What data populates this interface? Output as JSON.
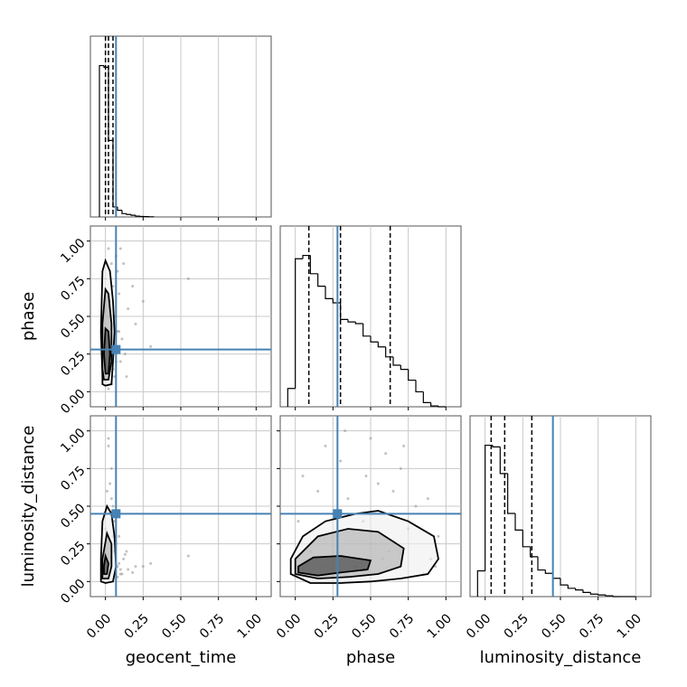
{
  "chart_data": {
    "type": "corner",
    "parameters": [
      "geocent_time",
      "phase",
      "luminosity_distance"
    ],
    "truths": [
      0.07,
      0.28,
      0.45
    ],
    "truth_color": "#4682b4",
    "quantiles": [
      [
        0.0,
        0.02,
        0.05
      ],
      [
        0.09,
        0.3,
        0.63
      ],
      [
        0.04,
        0.13,
        0.31
      ]
    ],
    "lim": [
      -0.1,
      1.1
    ],
    "ticks": [
      {
        "value": 0,
        "label": "0.00"
      },
      {
        "value": 0.25,
        "label": "0.25"
      },
      {
        "value": 0.5,
        "label": "0.50"
      },
      {
        "value": 0.75,
        "label": "0.75"
      },
      {
        "value": 1,
        "label": "1.00"
      }
    ],
    "grid": true,
    "histograms": [
      {
        "bins": [
          -0.04,
          -0.01,
          0.02,
          0.05,
          0.08,
          0.11,
          0.14,
          0.17,
          0.2,
          0.23,
          0.26,
          0.29,
          0.32
        ],
        "counts": [
          0.91,
          0.9,
          0.46,
          0.06,
          0.04,
          0.02,
          0.015,
          0.01,
          0.005,
          0.003,
          0.002,
          0.001
        ],
        "ylim": [
          0,
          1
        ]
      },
      {
        "bins": [
          -0.05,
          0,
          0.05,
          0.1,
          0.15,
          0.2,
          0.25,
          0.3,
          0.35,
          0.4,
          0.45,
          0.5,
          0.55,
          0.6,
          0.65,
          0.7,
          0.75,
          0.8,
          0.85,
          0.9,
          0.95,
          1
        ],
        "counts": [
          0.11,
          0.89,
          0.91,
          0.8,
          0.725,
          0.65,
          0.625,
          0.525,
          0.51,
          0.5,
          0.425,
          0.39,
          0.36,
          0.3,
          0.25,
          0.225,
          0.16,
          0.09,
          0.025,
          0.005,
          0
        ],
        "ylim": [
          0,
          1
        ]
      },
      {
        "bins": [
          -0.05,
          0,
          0.05,
          0.1,
          0.15,
          0.2,
          0.25,
          0.3,
          0.35,
          0.4,
          0.45,
          0.5,
          0.55,
          0.6,
          0.65,
          0.7,
          0.75,
          0.8,
          0.85,
          0.9,
          0.95,
          1
        ],
        "counts": [
          0.155,
          0.91,
          0.9,
          0.74,
          0.5,
          0.4,
          0.3,
          0.24,
          0.16,
          0.14,
          0.11,
          0.07,
          0.05,
          0.04,
          0.025,
          0.015,
          0.01,
          0.005,
          0,
          0,
          0
        ],
        "ylim": [
          0,
          1
        ]
      }
    ],
    "pairs": [
      {
        "x": 0,
        "y": 1,
        "points_x": [
          0.02,
          0.05,
          0.08,
          0.1,
          0.01,
          0.12,
          0.06,
          0.15,
          0.03,
          0.09,
          0.2,
          0.04,
          0.07,
          0.11,
          0.0,
          0.13,
          0.25,
          0.05,
          0.08,
          0.02,
          0.3,
          0.06,
          0.1,
          0.14,
          0.03,
          0.55,
          0.09,
          0.07,
          0.18,
          0.04
        ],
        "points_y": [
          0.95,
          0.7,
          0.4,
          0.2,
          0.5,
          0.85,
          0.1,
          0.55,
          0.3,
          0.65,
          0.45,
          0.05,
          0.9,
          0.35,
          0.75,
          0.25,
          0.6,
          0.15,
          0.8,
          0.02,
          0.3,
          0.5,
          0.95,
          0.1,
          0.6,
          0.75,
          0.4,
          0.2,
          0.7,
          0.85
        ],
        "contours": [
          {
            "x": [
              -0.02,
              0.0,
              0.04,
              0.05,
              0.06,
              0.05,
              0.03,
              0.0,
              -0.02,
              -0.03,
              -0.02
            ],
            "y": [
              0.05,
              0.04,
              0.05,
              0.2,
              0.4,
              0.6,
              0.8,
              0.87,
              0.8,
              0.4,
              0.1
            ]
          },
          {
            "x": [
              -0.01,
              0.02,
              0.04,
              0.04,
              0.02,
              0.0,
              -0.02,
              -0.02
            ],
            "y": [
              0.08,
              0.08,
              0.2,
              0.45,
              0.65,
              0.68,
              0.45,
              0.15
            ]
          },
          {
            "x": [
              0.0,
              0.02,
              0.03,
              0.02,
              0.0,
              -0.01
            ],
            "y": [
              0.12,
              0.12,
              0.25,
              0.4,
              0.42,
              0.25
            ]
          }
        ]
      },
      {
        "x": 0,
        "y": 2,
        "points_x": [
          0.02,
          0.05,
          0.08,
          0.1,
          0.01,
          0.12,
          0.06,
          0.15,
          0.03,
          0.09,
          0.2,
          0.04,
          0.07,
          0.11,
          0.0,
          0.13,
          0.25,
          0.05,
          0.08,
          0.02,
          0.3,
          0.06,
          0.1,
          0.14,
          0.03,
          0.55,
          0.09,
          0.07,
          0.18,
          0.04
        ],
        "points_y": [
          0.9,
          0.3,
          0.1,
          0.05,
          0.6,
          0.15,
          0.2,
          0.08,
          0.45,
          0.12,
          0.1,
          0.75,
          0.25,
          0.05,
          0.35,
          0.18,
          0.1,
          0.5,
          0.03,
          0.95,
          0.12,
          0.4,
          0.08,
          0.2,
          0.65,
          0.17,
          0.3,
          0.1,
          0.06,
          0.55
        ],
        "contours": [
          {
            "x": [
              -0.03,
              0.0,
              0.05,
              0.07,
              0.06,
              0.04,
              0.01,
              -0.02,
              -0.03
            ],
            "y": [
              0.0,
              -0.01,
              0.0,
              0.1,
              0.3,
              0.45,
              0.5,
              0.4,
              0.15
            ]
          },
          {
            "x": [
              -0.02,
              0.02,
              0.04,
              0.04,
              0.01,
              -0.02
            ],
            "y": [
              0.02,
              0.02,
              0.1,
              0.25,
              0.32,
              0.15
            ]
          },
          {
            "x": [
              -0.01,
              0.01,
              0.02,
              0.0,
              -0.01
            ],
            "y": [
              0.05,
              0.05,
              0.12,
              0.17,
              0.1
            ]
          }
        ]
      },
      {
        "x": 1,
        "y": 2,
        "points_x": [
          0.05,
          0.2,
          0.35,
          0.5,
          0.65,
          0.8,
          0.95,
          0.1,
          0.3,
          0.45,
          0.6,
          0.75,
          0.9,
          0.15,
          0.4,
          0.55,
          0.7,
          0.85,
          0.25,
          0.5,
          0.02,
          0.33,
          0.62,
          0.88,
          0.18,
          0.47,
          0.72,
          0.93,
          0.28,
          0.58
        ],
        "points_y": [
          0.7,
          0.9,
          0.55,
          0.95,
          0.6,
          0.5,
          0.3,
          0.2,
          0.8,
          0.4,
          0.85,
          0.35,
          0.15,
          0.6,
          0.1,
          0.65,
          0.75,
          0.05,
          0.45,
          0.25,
          0.4,
          1.0,
          0.2,
          0.55,
          0.1,
          0.7,
          0.9,
          0.1,
          0.3,
          0.15
        ],
        "contours": [
          {
            "x": [
              -0.03,
              0.1,
              0.3,
              0.5,
              0.7,
              0.88,
              0.95,
              0.92,
              0.75,
              0.55,
              0.4,
              0.2,
              0.05,
              -0.03
            ],
            "y": [
              0.05,
              -0.01,
              -0.01,
              0.0,
              0.02,
              0.05,
              0.15,
              0.3,
              0.4,
              0.47,
              0.45,
              0.4,
              0.3,
              0.15
            ]
          },
          {
            "x": [
              0.0,
              0.15,
              0.35,
              0.55,
              0.7,
              0.72,
              0.55,
              0.35,
              0.15,
              0.0
            ],
            "y": [
              0.05,
              0.02,
              0.03,
              0.05,
              0.1,
              0.22,
              0.33,
              0.35,
              0.3,
              0.15
            ]
          },
          {
            "x": [
              0.02,
              0.15,
              0.3,
              0.48,
              0.5,
              0.3,
              0.12,
              0.02
            ],
            "y": [
              0.06,
              0.04,
              0.06,
              0.08,
              0.14,
              0.17,
              0.16,
              0.1
            ]
          }
        ]
      }
    ]
  }
}
